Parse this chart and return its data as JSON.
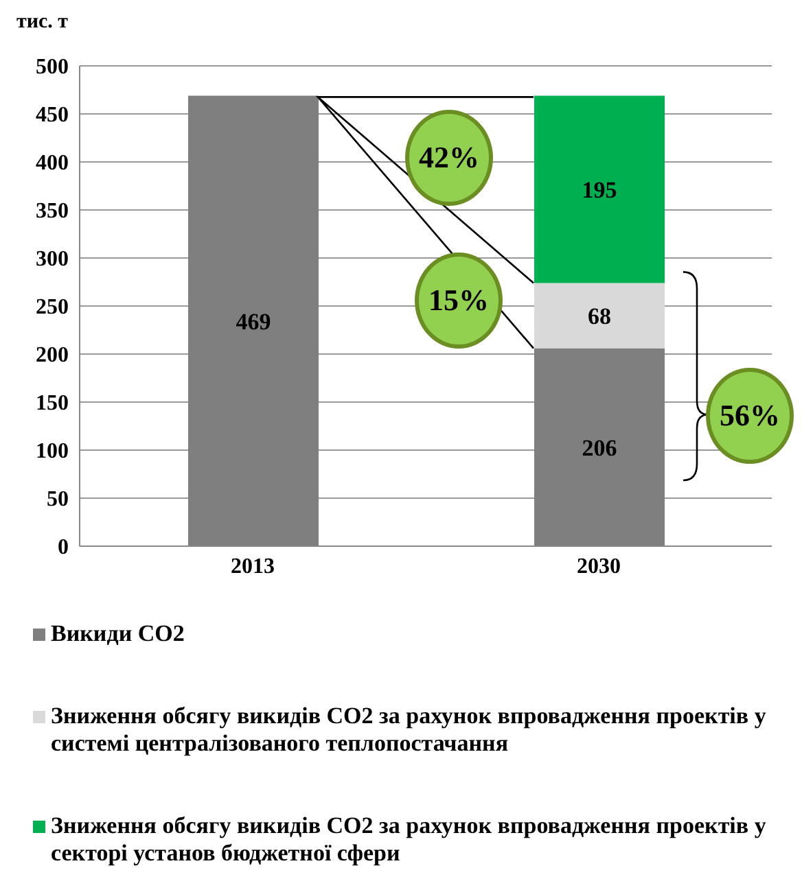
{
  "chart_data": {
    "type": "bar",
    "ylabel": "тис. т",
    "categories": [
      "2013",
      "2030"
    ],
    "stacked": true,
    "data_labels": true,
    "grid": "y",
    "legend": "bottom",
    "ylim": [
      0,
      500
    ],
    "yticks": [
      0,
      50,
      100,
      150,
      200,
      250,
      300,
      350,
      400,
      450,
      500
    ],
    "series": [
      {
        "name": "Викиди CO2",
        "color": "#7f7f7f",
        "values": [
          469,
          206
        ]
      },
      {
        "name": "Зниження обсягу викидів CO2 за рахунок впровадження проектів у системі централізованого теплопостачання",
        "color": "#d9d9d9",
        "values": [
          null,
          68
        ]
      },
      {
        "name": "Зниження обсягу викидів CO2 за рахунок впровадження проектів у секторі установ бюджетної сфери",
        "color": "#00b050",
        "values": [
          null,
          195
        ]
      }
    ],
    "annotations": [
      "42%",
      "15%",
      "56%"
    ]
  }
}
